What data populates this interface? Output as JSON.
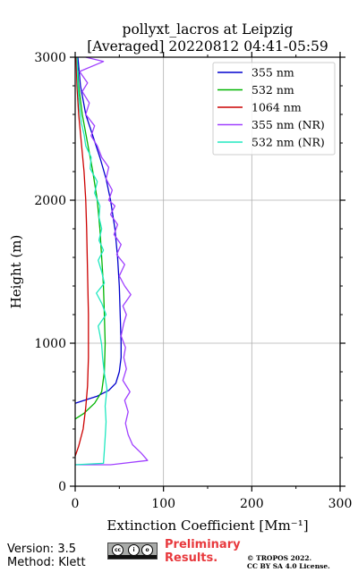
{
  "chart_data": {
    "type": "line",
    "title": "pollyxt_lacros at Leipzig",
    "subtitle": "[Averaged] 20220812 04:41-05:59",
    "xlabel": "Extinction Coefficient [Mm⁻¹]",
    "ylabel": "Height (m)",
    "xlim": [
      0,
      300
    ],
    "ylim": [
      0,
      3000
    ],
    "xticks": [
      "0",
      "100",
      "200",
      "300"
    ],
    "yticks": [
      "0",
      "1000",
      "2000",
      "3000"
    ],
    "grid": true,
    "legend_position": "top-right",
    "series": [
      {
        "name": "355 nm",
        "color": "#0000cd",
        "points": [
          [
            0,
            580
          ],
          [
            10,
            600
          ],
          [
            25,
            630
          ],
          [
            38,
            670
          ],
          [
            46,
            720
          ],
          [
            50,
            800
          ],
          [
            52,
            900
          ],
          [
            52,
            1000
          ],
          [
            51,
            1200
          ],
          [
            50,
            1400
          ],
          [
            48,
            1600
          ],
          [
            45,
            1800
          ],
          [
            40,
            2000
          ],
          [
            35,
            2150
          ],
          [
            28,
            2300
          ],
          [
            20,
            2450
          ],
          [
            12,
            2600
          ],
          [
            6,
            2800
          ],
          [
            3,
            3000
          ]
        ]
      },
      {
        "name": "532 nm",
        "color": "#00b400",
        "points": [
          [
            0,
            470
          ],
          [
            10,
            510
          ],
          [
            22,
            580
          ],
          [
            30,
            660
          ],
          [
            33,
            800
          ],
          [
            34,
            1000
          ],
          [
            33,
            1200
          ],
          [
            32,
            1400
          ],
          [
            30,
            1600
          ],
          [
            28,
            1800
          ],
          [
            25,
            2000
          ],
          [
            20,
            2200
          ],
          [
            14,
            2400
          ],
          [
            8,
            2600
          ],
          [
            4,
            2800
          ],
          [
            2,
            3000
          ]
        ]
      },
      {
        "name": "1064 nm",
        "color": "#cc0000",
        "points": [
          [
            0,
            210
          ],
          [
            4,
            280
          ],
          [
            9,
            400
          ],
          [
            12,
            550
          ],
          [
            14,
            700
          ],
          [
            15,
            900
          ],
          [
            15,
            1200
          ],
          [
            14,
            1500
          ],
          [
            13,
            1800
          ],
          [
            12,
            2000
          ],
          [
            10,
            2200
          ],
          [
            7,
            2400
          ],
          [
            4,
            2600
          ],
          [
            2,
            2800
          ],
          [
            1,
            3000
          ]
        ]
      },
      {
        "name": "355 nm (NR)",
        "color": "#a040ff",
        "points": [
          [
            0,
            150
          ],
          [
            40,
            150
          ],
          [
            82,
            180
          ],
          [
            75,
            230
          ],
          [
            65,
            290
          ],
          [
            60,
            360
          ],
          [
            57,
            440
          ],
          [
            60,
            520
          ],
          [
            56,
            600
          ],
          [
            62,
            660
          ],
          [
            54,
            740
          ],
          [
            58,
            820
          ],
          [
            55,
            900
          ],
          [
            57,
            970
          ],
          [
            52,
            1050
          ],
          [
            55,
            1140
          ],
          [
            58,
            1200
          ],
          [
            54,
            1260
          ],
          [
            63,
            1340
          ],
          [
            56,
            1400
          ],
          [
            50,
            1470
          ],
          [
            56,
            1550
          ],
          [
            47,
            1620
          ],
          [
            52,
            1690
          ],
          [
            44,
            1760
          ],
          [
            48,
            1830
          ],
          [
            40,
            1900
          ],
          [
            45,
            1960
          ],
          [
            38,
            2000
          ],
          [
            42,
            2070
          ],
          [
            35,
            2150
          ],
          [
            38,
            2230
          ],
          [
            30,
            2300
          ],
          [
            25,
            2380
          ],
          [
            18,
            2450
          ],
          [
            22,
            2520
          ],
          [
            12,
            2600
          ],
          [
            16,
            2680
          ],
          [
            8,
            2760
          ],
          [
            14,
            2820
          ],
          [
            5,
            2900
          ],
          [
            32,
            2970
          ],
          [
            12,
            3000
          ]
        ]
      },
      {
        "name": "532 nm (NR)",
        "color": "#20e8c0",
        "points": [
          [
            0,
            150
          ],
          [
            32,
            160
          ],
          [
            33,
            250
          ],
          [
            34,
            340
          ],
          [
            35,
            450
          ],
          [
            34,
            560
          ],
          [
            36,
            680
          ],
          [
            33,
            790
          ],
          [
            31,
            900
          ],
          [
            30,
            990
          ],
          [
            28,
            1060
          ],
          [
            26,
            1120
          ],
          [
            35,
            1200
          ],
          [
            30,
            1280
          ],
          [
            24,
            1350
          ],
          [
            33,
            1420
          ],
          [
            30,
            1500
          ],
          [
            26,
            1580
          ],
          [
            32,
            1650
          ],
          [
            27,
            1720
          ],
          [
            30,
            1800
          ],
          [
            27,
            1880
          ],
          [
            28,
            1960
          ],
          [
            22,
            2050
          ],
          [
            25,
            2130
          ],
          [
            17,
            2220
          ],
          [
            18,
            2300
          ],
          [
            12,
            2380
          ],
          [
            10,
            2460
          ],
          [
            7,
            2540
          ],
          [
            5,
            2650
          ],
          [
            3,
            2800
          ],
          [
            2,
            3000
          ]
        ]
      }
    ]
  },
  "footer": {
    "version": "Version: 3.5",
    "method": "Method: Klett",
    "preliminary_line1": "Preliminary",
    "preliminary_line2": "Results.",
    "copyright_line1": "© TROPOS 2022.",
    "copyright_line2": "CC BY SA 4.0 License."
  },
  "icons": {
    "license_badge": "cc-by-sa-icon"
  }
}
